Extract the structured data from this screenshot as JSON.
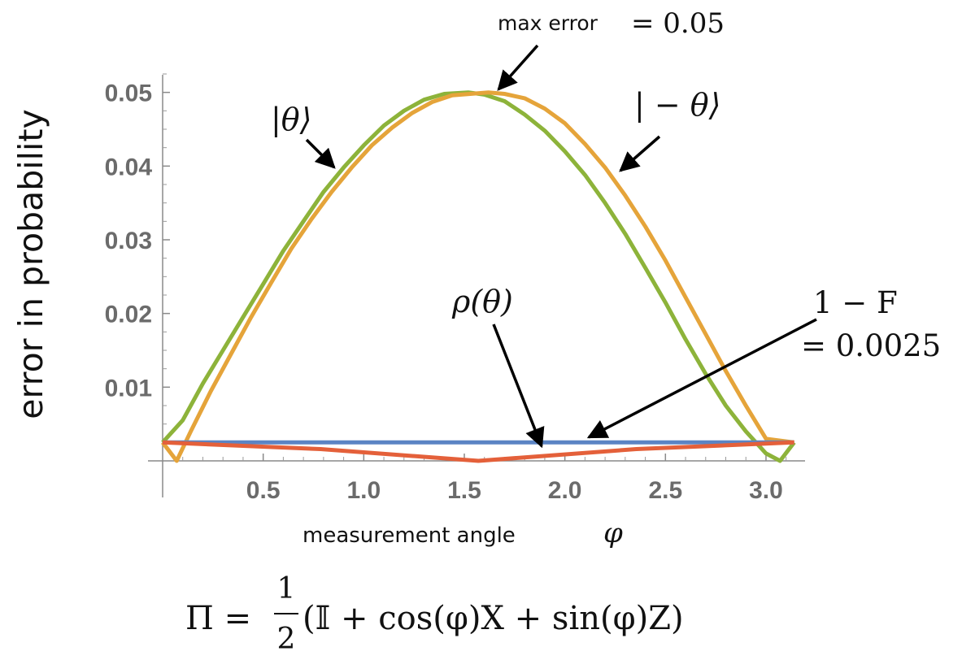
{
  "chart_data": {
    "type": "line",
    "xlabel": "measurement angle",
    "xlabel_symbol": "φ",
    "ylabel": "error in probability",
    "xlim": [
      0,
      3.1416
    ],
    "ylim": [
      0,
      0.0525
    ],
    "x_ticks": [
      0.5,
      1.0,
      1.5,
      2.0,
      2.5,
      3.0
    ],
    "x_tick_labels": [
      "0.5",
      "1.0",
      "1.5",
      "2.0",
      "2.5",
      "3.0"
    ],
    "y_ticks": [
      0.01,
      0.02,
      0.03,
      0.04,
      0.05
    ],
    "y_tick_labels": [
      "0.01",
      "0.02",
      "0.03",
      "0.04",
      "0.05"
    ],
    "grid": false,
    "series": [
      {
        "name": "|θ⟩",
        "color": "#8db33a",
        "x": [
          0.0,
          0.1,
          0.2,
          0.3,
          0.4,
          0.5,
          0.6,
          0.7,
          0.8,
          0.9,
          1.0,
          1.1,
          1.2,
          1.3,
          1.4,
          1.52,
          1.6,
          1.7,
          1.8,
          1.9,
          2.0,
          2.1,
          2.2,
          2.3,
          2.4,
          2.5,
          2.6,
          2.7,
          2.8,
          2.9,
          3.0,
          3.07,
          3.14
        ],
        "y": [
          0.0025,
          0.0055,
          0.0105,
          0.015,
          0.0195,
          0.024,
          0.0285,
          0.0325,
          0.0365,
          0.0398,
          0.0428,
          0.0455,
          0.0475,
          0.049,
          0.0498,
          0.05,
          0.0497,
          0.0488,
          0.047,
          0.0448,
          0.042,
          0.0388,
          0.035,
          0.0308,
          0.0262,
          0.0215,
          0.0165,
          0.0118,
          0.0075,
          0.004,
          0.001,
          0.0,
          0.0025
        ]
      },
      {
        "name": "|−θ⟩",
        "color": "#e5a43a",
        "x": [
          0.0,
          0.07,
          0.14,
          0.24,
          0.34,
          0.44,
          0.54,
          0.64,
          0.74,
          0.84,
          0.94,
          1.04,
          1.14,
          1.24,
          1.34,
          1.44,
          1.62,
          1.7,
          1.8,
          1.9,
          2.0,
          2.1,
          2.2,
          2.3,
          2.4,
          2.5,
          2.6,
          2.7,
          2.8,
          2.9,
          3.0,
          3.14
        ],
        "y": [
          0.0025,
          0.0,
          0.004,
          0.0095,
          0.0145,
          0.0195,
          0.0242,
          0.0288,
          0.0328,
          0.0365,
          0.0398,
          0.0428,
          0.0452,
          0.0472,
          0.0487,
          0.0496,
          0.05,
          0.0498,
          0.0492,
          0.0478,
          0.0458,
          0.043,
          0.0398,
          0.036,
          0.0318,
          0.0272,
          0.0222,
          0.0172,
          0.0122,
          0.0075,
          0.003,
          0.0025
        ]
      },
      {
        "name": "blue",
        "color": "#5b84c4",
        "x": [
          0.0,
          3.14
        ],
        "y": [
          0.0025,
          0.0025
        ]
      },
      {
        "name": "ρ(θ)",
        "color": "#e4603a",
        "x": [
          0.0,
          0.785,
          1.57,
          2.355,
          3.14
        ],
        "y": [
          0.0025,
          0.0016,
          0.0,
          0.0016,
          0.0025
        ]
      }
    ],
    "annotations": {
      "max_error_word": "max error",
      "max_error_value": "= 0.05",
      "theta_label": "|θ⟩",
      "minus_theta_label": "| − θ⟩",
      "rho_label": "ρ(θ)",
      "fidelity_line1": "1 − F",
      "fidelity_line2": "= 0.0025"
    },
    "formula": {
      "lhs": "Π =",
      "numerator": "1",
      "denominator": "2",
      "rhs": "(𝕀 + cos(φ)X + sin(φ)Z)"
    }
  }
}
